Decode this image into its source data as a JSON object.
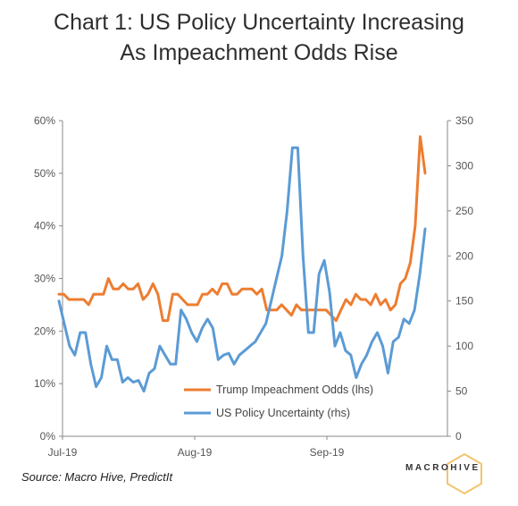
{
  "title_line1": "Chart 1: US Policy Uncertainty Increasing",
  "title_line2": "As Impeachment Odds Rise",
  "source": "Source: Macro Hive, PredictIt",
  "logo_text": "MACROHIVE",
  "colors": {
    "impeachment": "#ED7D31",
    "uncertainty": "#5B9BD5",
    "axis": "#888888"
  },
  "chart_data": {
    "type": "line",
    "x_labels": [
      "Jul-19",
      "Aug-19",
      "Sep-19"
    ],
    "y_left": {
      "min": 0,
      "max": 0.6,
      "ticks": [
        "0%",
        "10%",
        "20%",
        "30%",
        "40%",
        "50%",
        "60%"
      ]
    },
    "y_right": {
      "min": 0,
      "max": 350,
      "ticks": [
        "0",
        "50",
        "100",
        "150",
        "200",
        "250",
        "300",
        "350"
      ]
    },
    "legend_position": "bottom-right",
    "series": [
      {
        "name": "Trump Impeachment Odds (lhs)",
        "axis": "left",
        "values": [
          0.27,
          0.27,
          0.26,
          0.26,
          0.26,
          0.26,
          0.25,
          0.27,
          0.27,
          0.27,
          0.3,
          0.28,
          0.28,
          0.29,
          0.28,
          0.28,
          0.29,
          0.26,
          0.27,
          0.29,
          0.27,
          0.22,
          0.22,
          0.27,
          0.27,
          0.26,
          0.25,
          0.25,
          0.25,
          0.27,
          0.27,
          0.28,
          0.27,
          0.29,
          0.29,
          0.27,
          0.27,
          0.28,
          0.28,
          0.28,
          0.27,
          0.28,
          0.24,
          0.24,
          0.24,
          0.25,
          0.24,
          0.23,
          0.25,
          0.24,
          0.24,
          0.24,
          0.24,
          0.24,
          0.24,
          0.23,
          0.22,
          0.24,
          0.26,
          0.25,
          0.27,
          0.26,
          0.26,
          0.25,
          0.27,
          0.25,
          0.26,
          0.24,
          0.25,
          0.29,
          0.3,
          0.33,
          0.4,
          0.57,
          0.5
        ]
      },
      {
        "name": "US Policy Uncertainty (rhs)",
        "axis": "right",
        "values": [
          150,
          125,
          100,
          90,
          115,
          115,
          80,
          55,
          65,
          100,
          85,
          85,
          60,
          65,
          60,
          62,
          50,
          70,
          75,
          100,
          90,
          80,
          80,
          140,
          130,
          115,
          105,
          120,
          130,
          120,
          85,
          90,
          92,
          80,
          90,
          95,
          100,
          105,
          115,
          125,
          150,
          175,
          200,
          250,
          320,
          320,
          200,
          115,
          115,
          180,
          195,
          160,
          100,
          115,
          95,
          90,
          65,
          80,
          90,
          105,
          115,
          100,
          70,
          105,
          110,
          130,
          125,
          140,
          180,
          230
        ]
      }
    ]
  }
}
